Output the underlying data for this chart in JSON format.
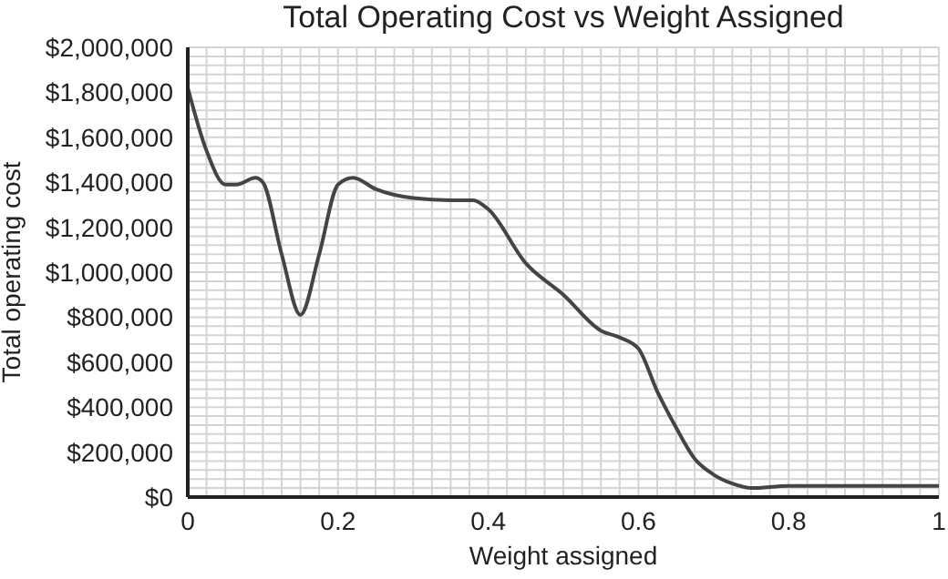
{
  "chart_data": {
    "type": "line",
    "title": "Total Operating Cost vs Weight Assigned",
    "xlabel": "Weight assigned",
    "ylabel": "Total operating cost",
    "x": [
      0,
      0.025,
      0.05,
      0.065,
      0.09,
      0.1,
      0.125,
      0.15,
      0.175,
      0.2,
      0.22,
      0.25,
      0.3,
      0.35,
      0.38,
      0.4,
      0.45,
      0.5,
      0.55,
      0.575,
      0.6,
      0.625,
      0.65,
      0.675,
      0.7,
      0.725,
      0.75,
      0.8,
      0.9,
      1
    ],
    "series": [
      {
        "color": "#444444",
        "values": [
          1820000,
          1540000,
          1390000,
          1390000,
          1420000,
          1400000,
          1080000,
          810000,
          1080000,
          1390000,
          1420000,
          1370000,
          1330000,
          1320000,
          1320000,
          1280000,
          1040000,
          900000,
          740000,
          710000,
          660000,
          470000,
          310000,
          170000,
          100000,
          60000,
          40000,
          50000,
          50000,
          50000
        ]
      }
    ],
    "xlim": [
      0,
      1
    ],
    "xticks": [
      0,
      {
        "value": 0.025,
        "label": null
      },
      {
        "value": 0.05,
        "label": null
      },
      {
        "value": 0.075,
        "label": null
      },
      {
        "value": 0.1,
        "label": null
      },
      {
        "value": 0.125,
        "label": null
      },
      {
        "value": 0.15,
        "label": null
      },
      {
        "value": 0.175,
        "label": null
      },
      0.2,
      {
        "value": 0.225,
        "label": null
      },
      {
        "value": 0.25,
        "label": null
      },
      {
        "value": 0.275,
        "label": null
      },
      {
        "value": 0.3,
        "label": null
      },
      {
        "value": 0.325,
        "label": null
      },
      {
        "value": 0.35,
        "label": null
      },
      {
        "value": 0.375,
        "label": null
      },
      0.4,
      {
        "value": 0.425,
        "label": null
      },
      {
        "value": 0.45,
        "label": null
      },
      {
        "value": 0.475,
        "label": null
      },
      {
        "value": 0.5,
        "label": null
      },
      {
        "value": 0.525,
        "label": null
      },
      {
        "value": 0.55,
        "label": null
      },
      {
        "value": 0.575,
        "label": null
      },
      0.6,
      {
        "value": 0.625,
        "label": null
      },
      {
        "value": 0.65,
        "label": null
      },
      {
        "value": 0.675,
        "label": null
      },
      {
        "value": 0.7,
        "label": null
      },
      {
        "value": 0.725,
        "label": null
      },
      {
        "value": 0.75,
        "label": null
      },
      {
        "value": 0.775,
        "label": null
      },
      0.8,
      {
        "value": 0.825,
        "label": null
      },
      {
        "value": 0.85,
        "label": null
      },
      {
        "value": 0.875,
        "label": null
      },
      {
        "value": 0.9,
        "label": null
      },
      {
        "value": 0.925,
        "label": null
      },
      {
        "value": 0.95,
        "label": null
      },
      {
        "value": 0.975,
        "label": null
      },
      1
    ],
    "ylim": [
      0,
      2000000
    ],
    "yticks": [
      {
        "value": 0,
        "label": "$0"
      },
      {
        "value": 200000,
        "label": "$200,000"
      },
      {
        "value": 400000,
        "label": "$400,000"
      },
      {
        "value": 600000,
        "label": "$600,000"
      },
      {
        "value": 800000,
        "label": "$800,000"
      },
      {
        "value": 1000000,
        "label": "$1,000,000"
      },
      {
        "value": 1200000,
        "label": "$1,200,000"
      },
      {
        "value": 1400000,
        "label": "$1,400,000"
      },
      {
        "value": 1600000,
        "label": "$1,600,000"
      },
      {
        "value": 1800000,
        "label": "$1,800,000"
      },
      {
        "value": 2000000,
        "label": "$2,000,000"
      }
    ],
    "grid": true,
    "marker": "none",
    "line_style": "solid"
  }
}
